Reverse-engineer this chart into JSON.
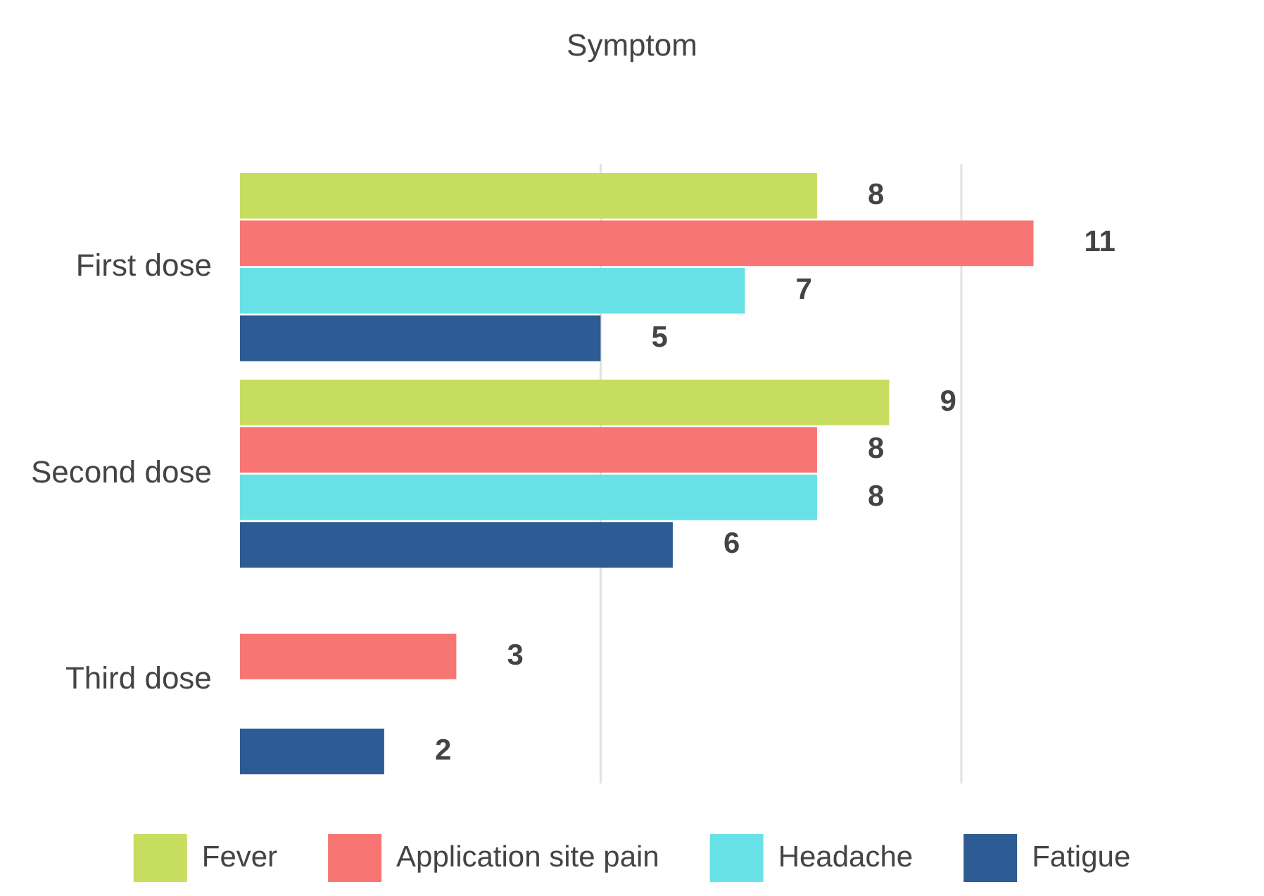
{
  "chart_data": {
    "type": "bar",
    "orientation": "horizontal",
    "title": "Symptom",
    "categories": [
      "First dose",
      "Second dose",
      "Third dose"
    ],
    "series": [
      {
        "name": "Fever",
        "color": "#c6dd5f",
        "values": [
          8,
          9,
          null
        ]
      },
      {
        "name": "Application site pain",
        "color": "#f77674",
        "values": [
          11,
          8,
          3
        ]
      },
      {
        "name": "Headache",
        "color": "#68e1e6",
        "values": [
          7,
          8,
          null
        ]
      },
      {
        "name": "Fatigue",
        "color": "#2d5b93",
        "values": [
          5,
          6,
          2
        ]
      }
    ],
    "ref_lines": [
      {
        "axis": "x",
        "value": 5,
        "color": "#e2e2e2"
      },
      {
        "axis": "x",
        "value": 10,
        "color": "#e2e2e2"
      }
    ],
    "tick_labels": "y",
    "legend": "bottom",
    "data_labels": true
  }
}
